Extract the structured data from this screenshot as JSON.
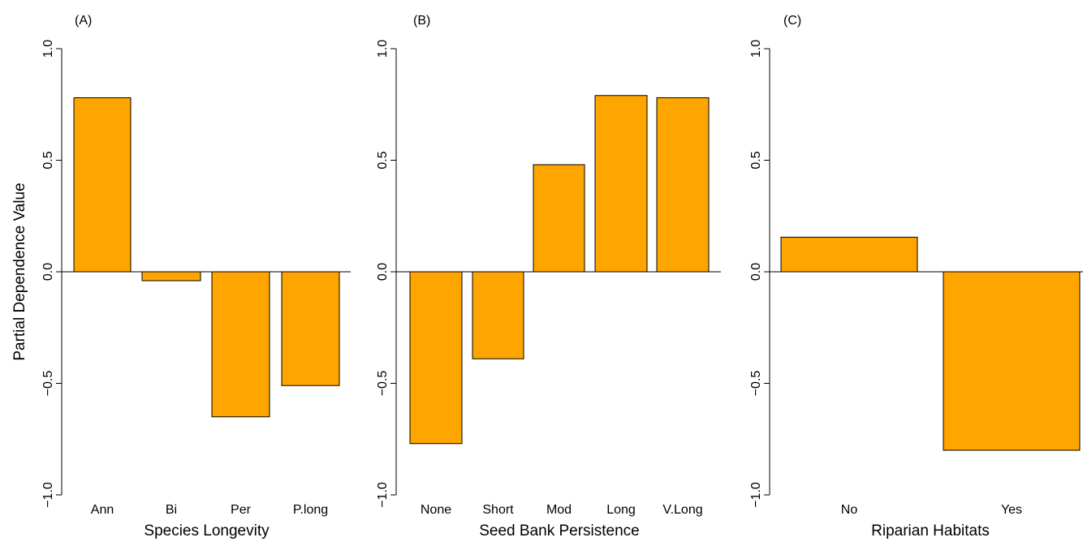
{
  "colors": {
    "bar_fill": "#FFA500",
    "bar_stroke": "#000000",
    "axis": "#000000"
  },
  "y_axis_title": "Partial Dependence Value",
  "chart_data": [
    {
      "type": "bar",
      "panel_label": "(A)",
      "xlabel": "Species Longevity",
      "ylabel": "Partial Dependence Value",
      "categories": [
        "Ann",
        "Bi",
        "Per",
        "P.long"
      ],
      "values": [
        0.78,
        -0.04,
        -0.65,
        -0.51
      ],
      "ylim": [
        -1.0,
        1.0
      ],
      "yticks": [
        "1.0",
        "0.5",
        "0.0",
        "−0.5",
        "−1.0"
      ],
      "ytick_values": [
        1.0,
        0.5,
        0.0,
        -0.5,
        -1.0
      ],
      "grid": false
    },
    {
      "type": "bar",
      "panel_label": "(B)",
      "xlabel": "Seed Bank Persistence",
      "ylabel": "",
      "categories": [
        "None",
        "Short",
        "Mod",
        "Long",
        "V.Long"
      ],
      "values": [
        -0.77,
        -0.39,
        0.48,
        0.79,
        0.78
      ],
      "ylim": [
        -1.0,
        1.0
      ],
      "yticks": [
        "1.0",
        "0.5",
        "0.0",
        "−0.5",
        "−1.0"
      ],
      "ytick_values": [
        1.0,
        0.5,
        0.0,
        -0.5,
        -1.0
      ],
      "grid": false
    },
    {
      "type": "bar",
      "panel_label": "(C)",
      "xlabel": "Riparian Habitats",
      "ylabel": "",
      "categories": [
        "No",
        "Yes"
      ],
      "values": [
        0.155,
        -0.8
      ],
      "ylim": [
        -1.0,
        1.0
      ],
      "yticks": [
        "1.0",
        "0.5",
        "0.0",
        "−0.5",
        "−1.0"
      ],
      "ytick_values": [
        1.0,
        0.5,
        0.0,
        -0.5,
        -1.0
      ],
      "grid": false
    }
  ]
}
